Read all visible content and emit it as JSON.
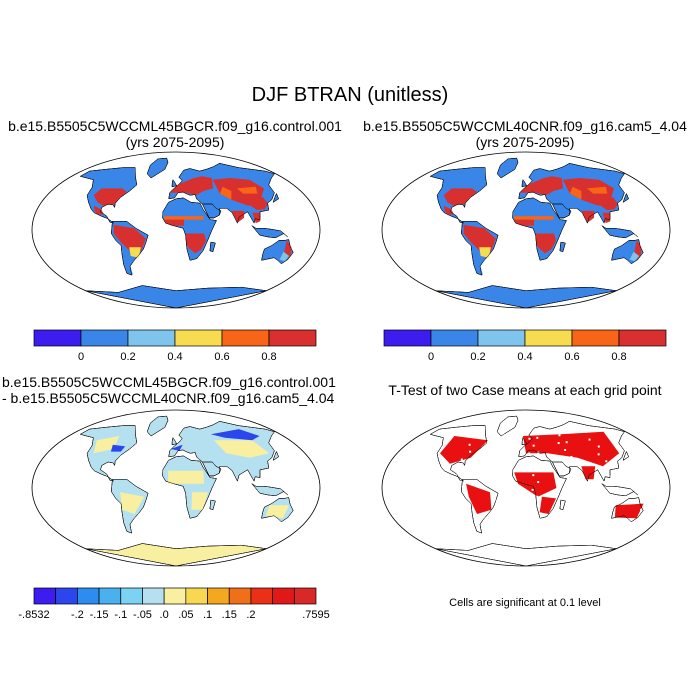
{
  "figure": {
    "title": "DJF BTRAN (unitless)"
  },
  "panels": {
    "case1": {
      "line1": "b.e15.B5505C5WCCML45BGCR.f09_g16.control.001",
      "line2": "(yrs 2075-2095)"
    },
    "case2": {
      "line1": "b.e15.B5505C5WCCML40CNR.f09_g16.cam5_4.04",
      "line2": "(yrs 2075-2095)"
    },
    "diff": {
      "line1": "b.e15.B5505C5WCCML45BGCR.f09_g16.control.001",
      "line2": "- b.e15.B5505C5WCCML40CNR.f09_g16.cam5_4.04"
    },
    "ttest": {
      "title": "T-Test of two Case means at each grid point",
      "note": "Cells are significant at 0.1 level"
    }
  },
  "colorbars": {
    "main": {
      "colors": [
        "#3d1cf0",
        "#3a86e8",
        "#7ec4ec",
        "#f8dc50",
        "#f86418",
        "#d8302e"
      ],
      "labels": [
        "0",
        "0.2",
        "0.4",
        "0.6",
        "0.8"
      ]
    },
    "diff": {
      "colors": [
        "#3d1cf0",
        "#2a46ec",
        "#2c8cf0",
        "#49b2ee",
        "#7cd2f2",
        "#b4e0f0",
        "#f8f0a0",
        "#f8d850",
        "#f4a820",
        "#f07018",
        "#ec3018",
        "#e01818",
        "#d82828"
      ],
      "labels": [
        "-.8532",
        "-.2",
        "-.15",
        "-.1",
        "-.05",
        ".0",
        ".05",
        ".1",
        ".15",
        ".2",
        ".7595"
      ]
    }
  },
  "map_colors": {
    "ocean": "#ffffff",
    "case_base": "#3a86e8",
    "case_wet": "#d8302e",
    "case_mid": "#f86418",
    "case_light": "#7ec4ec",
    "case_yellow": "#f8dc50",
    "diff_base": "#b4e0f0",
    "diff_pos": "#f8f0a0",
    "diff_neg": "#2a46ec",
    "ttest_sig": "#e81010"
  }
}
